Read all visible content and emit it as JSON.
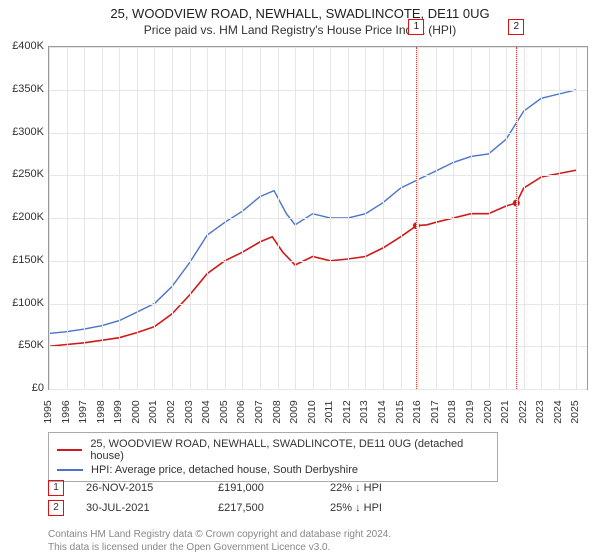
{
  "title": "25, WOODVIEW ROAD, NEWHALL, SWADLINCOTE, DE11 0UG",
  "subtitle": "Price paid vs. HM Land Registry's House Price Index (HPI)",
  "chart": {
    "type": "line",
    "background_color": "#ffffff",
    "border_color": "#999999",
    "grid_color": "#e6e6e6",
    "axis_color": "#666666",
    "label_fontsize": 11,
    "tick_fontsize": 10.5,
    "x_range": [
      1995,
      2025.6
    ],
    "y_range": [
      0,
      400000
    ],
    "y_ticks": [
      0,
      50000,
      100000,
      150000,
      200000,
      250000,
      300000,
      350000,
      400000
    ],
    "y_tick_labels": [
      "£0",
      "£50K",
      "£100K",
      "£150K",
      "£200K",
      "£250K",
      "£300K",
      "£350K",
      "£400K"
    ],
    "x_ticks": [
      1995,
      1996,
      1997,
      1998,
      1999,
      2000,
      2001,
      2002,
      2003,
      2004,
      2005,
      2006,
      2007,
      2008,
      2009,
      2010,
      2011,
      2012,
      2013,
      2014,
      2015,
      2016,
      2017,
      2018,
      2019,
      2020,
      2021,
      2022,
      2023,
      2024,
      2025
    ],
    "bands": [
      {
        "from": 2015.9,
        "to": 2016.02,
        "color": "#f6efe8"
      },
      {
        "from": 2021.55,
        "to": 2021.67,
        "color": "#eaf0f8"
      }
    ],
    "markers": [
      {
        "label": "1",
        "x": 2015.9,
        "dash_color": "#e33",
        "band_color": "#f6efe8"
      },
      {
        "label": "2",
        "x": 2021.58,
        "dash_color": "#e33",
        "band_color": "#eaf0f8"
      }
    ],
    "series": [
      {
        "name": "property",
        "label": "25, WOODVIEW ROAD, NEWHALL, SWADLINCOTE, DE11 0UG (detached house)",
        "color": "#d11919",
        "line_width": 1.6,
        "points": [
          [
            1995,
            50000
          ],
          [
            1996,
            52000
          ],
          [
            1997,
            54000
          ],
          [
            1998,
            57000
          ],
          [
            1999,
            60000
          ],
          [
            2000,
            66000
          ],
          [
            2001,
            73000
          ],
          [
            2002,
            88000
          ],
          [
            2003,
            110000
          ],
          [
            2004,
            135000
          ],
          [
            2005,
            150000
          ],
          [
            2006,
            160000
          ],
          [
            2007,
            172000
          ],
          [
            2007.7,
            178000
          ],
          [
            2008.3,
            160000
          ],
          [
            2009,
            145000
          ],
          [
            2010,
            155000
          ],
          [
            2011,
            150000
          ],
          [
            2012,
            152000
          ],
          [
            2013,
            155000
          ],
          [
            2014,
            165000
          ],
          [
            2015,
            178000
          ],
          [
            2015.9,
            191000
          ],
          [
            2016.5,
            192000
          ],
          [
            2017,
            195000
          ],
          [
            2018,
            200000
          ],
          [
            2019,
            205000
          ],
          [
            2020,
            205000
          ],
          [
            2021,
            214000
          ],
          [
            2021.58,
            217500
          ],
          [
            2022,
            235000
          ],
          [
            2023,
            248000
          ],
          [
            2024,
            252000
          ],
          [
            2025,
            256000
          ]
        ],
        "sale_dots": [
          {
            "x": 2015.9,
            "y": 191000
          },
          {
            "x": 2021.58,
            "y": 217500
          }
        ]
      },
      {
        "name": "hpi",
        "label": "HPI: Average price, detached house, South Derbyshire",
        "color": "#4a74c9",
        "line_width": 1.4,
        "points": [
          [
            1995,
            65000
          ],
          [
            1996,
            67000
          ],
          [
            1997,
            70000
          ],
          [
            1998,
            74000
          ],
          [
            1999,
            80000
          ],
          [
            2000,
            90000
          ],
          [
            2001,
            100000
          ],
          [
            2002,
            120000
          ],
          [
            2003,
            148000
          ],
          [
            2004,
            180000
          ],
          [
            2005,
            195000
          ],
          [
            2006,
            208000
          ],
          [
            2007,
            225000
          ],
          [
            2007.8,
            232000
          ],
          [
            2008.5,
            205000
          ],
          [
            2009,
            192000
          ],
          [
            2010,
            205000
          ],
          [
            2011,
            200000
          ],
          [
            2012,
            200000
          ],
          [
            2013,
            205000
          ],
          [
            2014,
            218000
          ],
          [
            2015,
            235000
          ],
          [
            2016,
            245000
          ],
          [
            2017,
            255000
          ],
          [
            2018,
            265000
          ],
          [
            2019,
            272000
          ],
          [
            2020,
            275000
          ],
          [
            2021,
            292000
          ],
          [
            2022,
            325000
          ],
          [
            2023,
            340000
          ],
          [
            2024,
            345000
          ],
          [
            2025,
            350000
          ]
        ]
      }
    ]
  },
  "legend": {
    "series": [
      {
        "color": "#d11919",
        "label": "25, WOODVIEW ROAD, NEWHALL, SWADLINCOTE, DE11 0UG (detached house)"
      },
      {
        "color": "#4a74c9",
        "label": "HPI: Average price, detached house, South Derbyshire"
      }
    ]
  },
  "sales": [
    {
      "marker": "1",
      "date": "26-NOV-2015",
      "price": "£191,000",
      "delta": "22% ↓ HPI"
    },
    {
      "marker": "2",
      "date": "30-JUL-2021",
      "price": "£217,500",
      "delta": "25% ↓ HPI"
    }
  ],
  "footer_line1": "Contains HM Land Registry data © Crown copyright and database right 2024.",
  "footer_line2": "This data is licensed under the Open Government Licence v3.0."
}
